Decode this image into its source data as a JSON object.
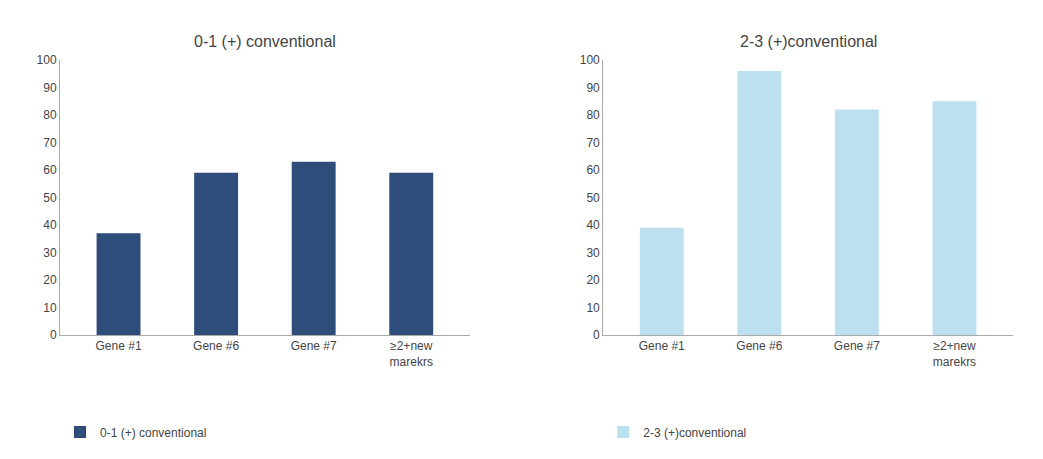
{
  "chart_data": [
    {
      "type": "bar",
      "title": "0-1 (+) conventional",
      "categories": [
        "Gene #1",
        "Gene #6",
        "Gene #7",
        "≥2+new\nmarekrs"
      ],
      "series": [
        {
          "name": "0-1 (+) conventional",
          "color": "#2E4D7B",
          "values": [
            37,
            59,
            63,
            59
          ]
        }
      ],
      "ylim": [
        0,
        100
      ],
      "yticks": [
        0,
        10,
        20,
        30,
        40,
        50,
        60,
        70,
        80,
        90,
        100
      ],
      "grid": false,
      "legend": "lower left"
    },
    {
      "type": "bar",
      "title": "2-3 (+)conventional",
      "categories": [
        "Gene #1",
        "Gene #6",
        "Gene #7",
        "≥2+new\nmarekrs"
      ],
      "series": [
        {
          "name": "2-3 (+)conventional",
          "color": "#BDE0F0",
          "values": [
            39,
            96,
            82,
            85
          ]
        }
      ],
      "ylim": [
        0,
        100
      ],
      "yticks": [
        0,
        10,
        20,
        30,
        40,
        50,
        60,
        70,
        80,
        90,
        100
      ],
      "grid": false,
      "legend": "lower left"
    }
  ]
}
